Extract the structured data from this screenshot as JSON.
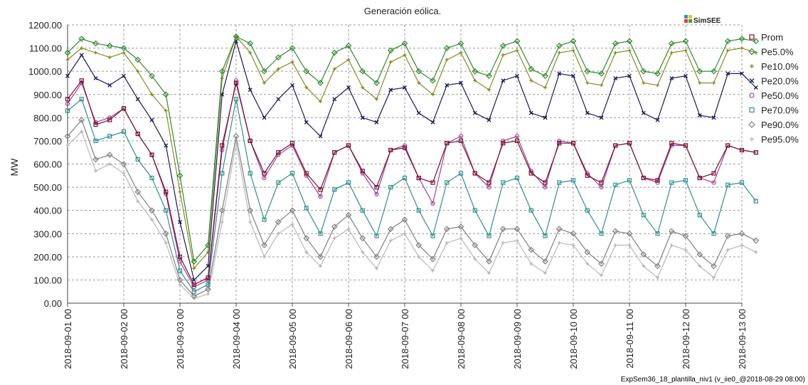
{
  "chart_data": {
    "type": "line",
    "title": "Generación eólica.",
    "ylabel": "MW",
    "xlabel": "",
    "ylim": [
      0,
      1200
    ],
    "y_ticks": [
      "0.00",
      "100.00",
      "200.00",
      "300.00",
      "400.00",
      "500.00",
      "600.00",
      "700.00",
      "800.00",
      "900.00",
      "1000.00",
      "1100.00",
      "1200.00"
    ],
    "x_ticks": [
      "2018-09-01 00",
      "2018-09-02 00",
      "2018-09-03 00",
      "2018-09-04 00",
      "2018-09-05 00",
      "2018-09-06 00",
      "2018-09-07 00",
      "2018-09-08 00",
      "2018-09-09 00",
      "2018-09-10 00",
      "2018-09-11 00",
      "2018-09-12 00",
      "2018-09-13 00"
    ],
    "grid": true,
    "legend_position": "right",
    "x_day_points": [
      0,
      0.25,
      0.5,
      0.75,
      1,
      1.25,
      1.5,
      1.75,
      2,
      2.25,
      2.5,
      2.75,
      3,
      3.25,
      3.5,
      3.75,
      4,
      4.25,
      4.5,
      4.75,
      5,
      5.25,
      5.5,
      5.75,
      6,
      6.25,
      6.5,
      6.75,
      7,
      7.25,
      7.5,
      7.75,
      8,
      8.25,
      8.5,
      8.75,
      9,
      9.25,
      9.5,
      9.75,
      10,
      10.25,
      10.5,
      10.75,
      11,
      11.25,
      11.5,
      11.75,
      12,
      12.25
    ],
    "series": [
      {
        "name": "Prom",
        "color": "#7a1030",
        "marker": "square",
        "values": [
          880,
          960,
          770,
          790,
          840,
          730,
          640,
          480,
          200,
          80,
          110,
          680,
          950,
          700,
          560,
          650,
          690,
          560,
          490,
          650,
          680,
          570,
          500,
          660,
          670,
          540,
          520,
          690,
          700,
          560,
          520,
          690,
          700,
          560,
          520,
          690,
          690,
          550,
          520,
          680,
          690,
          540,
          530,
          690,
          680,
          540,
          560,
          680,
          660,
          650
        ]
      },
      {
        "name": "Pe5.0%",
        "color": "#2e8b2e",
        "marker": "diamond",
        "values": [
          1080,
          1140,
          1120,
          1110,
          1100,
          1050,
          980,
          900,
          550,
          180,
          250,
          1000,
          1150,
          1120,
          1000,
          1060,
          1100,
          1000,
          950,
          1080,
          1110,
          1000,
          950,
          1090,
          1120,
          1000,
          960,
          1100,
          1120,
          1000,
          980,
          1110,
          1130,
          1010,
          980,
          1110,
          1130,
          1000,
          990,
          1120,
          1130,
          1000,
          990,
          1120,
          1130,
          1000,
          1000,
          1130,
          1140,
          1130
        ]
      },
      {
        "name": "Pe10.0%",
        "color": "#8b8b20",
        "marker": "plus",
        "values": [
          1050,
          1100,
          1080,
          1060,
          1080,
          1000,
          900,
          830,
          480,
          150,
          220,
          970,
          1150,
          1080,
          950,
          1010,
          1040,
          930,
          870,
          1010,
          1050,
          930,
          880,
          1040,
          1070,
          950,
          900,
          1050,
          1080,
          960,
          920,
          1070,
          1090,
          960,
          930,
          1080,
          1090,
          950,
          940,
          1080,
          1090,
          950,
          940,
          1080,
          1090,
          950,
          950,
          1090,
          1100,
          1080
        ]
      },
      {
        "name": "Pe20.0%",
        "color": "#1a1a5a",
        "marker": "cross",
        "values": [
          980,
          1070,
          970,
          940,
          980,
          880,
          790,
          680,
          350,
          100,
          160,
          900,
          1130,
          920,
          800,
          880,
          940,
          780,
          720,
          880,
          930,
          800,
          780,
          920,
          930,
          820,
          780,
          940,
          950,
          820,
          790,
          960,
          980,
          820,
          800,
          990,
          980,
          820,
          800,
          970,
          980,
          820,
          790,
          970,
          980,
          810,
          800,
          990,
          990,
          930
        ]
      },
      {
        "name": "Pe50.0%",
        "color": "#a040a0",
        "marker": "circle",
        "values": [
          860,
          950,
          780,
          800,
          840,
          730,
          640,
          470,
          180,
          70,
          100,
          660,
          960,
          700,
          540,
          640,
          680,
          550,
          460,
          650,
          680,
          560,
          470,
          660,
          680,
          540,
          430,
          690,
          720,
          560,
          500,
          700,
          720,
          570,
          500,
          700,
          690,
          560,
          500,
          680,
          690,
          540,
          520,
          680,
          680,
          540,
          520,
          680,
          660,
          650
        ]
      },
      {
        "name": "Pe70.0%",
        "color": "#2e9090",
        "marker": "square",
        "values": [
          830,
          880,
          700,
          720,
          740,
          620,
          540,
          400,
          140,
          50,
          80,
          560,
          880,
          560,
          360,
          520,
          560,
          410,
          300,
          490,
          520,
          400,
          290,
          500,
          540,
          400,
          290,
          520,
          560,
          400,
          290,
          520,
          540,
          400,
          290,
          520,
          530,
          400,
          300,
          510,
          530,
          380,
          300,
          520,
          530,
          380,
          300,
          510,
          520,
          440
        ]
      },
      {
        "name": "Pe90.0%",
        "color": "#808080",
        "marker": "diamond",
        "values": [
          720,
          790,
          620,
          640,
          600,
          480,
          400,
          300,
          100,
          30,
          60,
          400,
          720,
          400,
          250,
          350,
          400,
          280,
          200,
          330,
          380,
          280,
          200,
          320,
          360,
          250,
          190,
          320,
          330,
          250,
          180,
          320,
          320,
          230,
          180,
          320,
          300,
          220,
          170,
          310,
          300,
          210,
          160,
          310,
          290,
          210,
          160,
          290,
          300,
          270
        ]
      },
      {
        "name": "Pe95.0%",
        "color": "#b8b8b8",
        "marker": "plus",
        "values": [
          680,
          740,
          570,
          600,
          560,
          440,
          360,
          260,
          80,
          20,
          40,
          350,
          690,
          350,
          200,
          300,
          340,
          220,
          160,
          280,
          320,
          220,
          150,
          270,
          300,
          200,
          140,
          260,
          280,
          190,
          130,
          260,
          270,
          170,
          130,
          260,
          250,
          170,
          120,
          250,
          250,
          160,
          110,
          250,
          230,
          160,
          110,
          230,
          250,
          220
        ]
      }
    ]
  },
  "footer": "ExpSem36_18_plantilla_niv1 (v_iie0_@2018-08-29 08:00)",
  "logo_text": "SimSEE"
}
